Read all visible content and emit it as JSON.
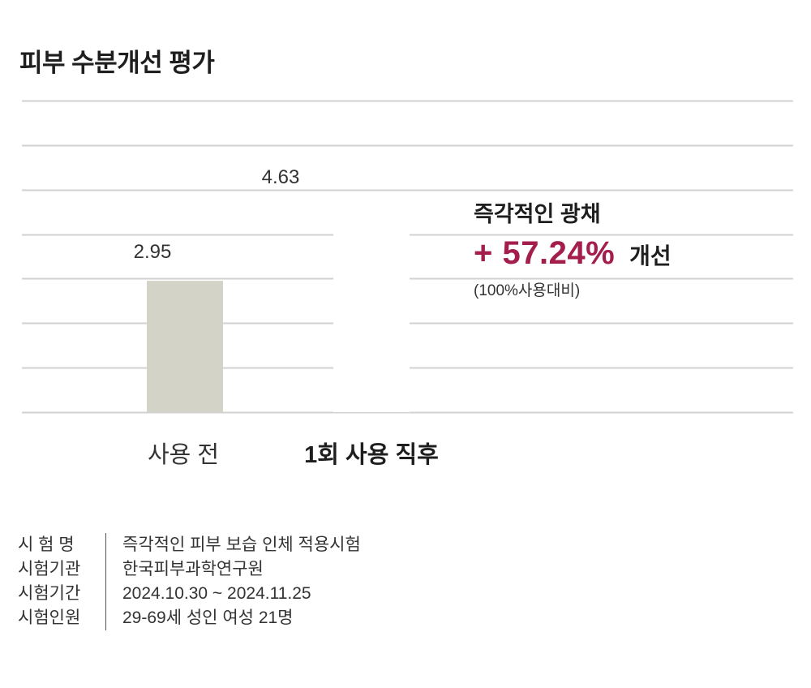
{
  "title": "피부 수분개선 평가",
  "chart_data": {
    "type": "bar",
    "categories": [
      "사용 전",
      "1회 사용 직후"
    ],
    "values": [
      2.95,
      4.63
    ],
    "value_labels": [
      "2.95",
      "4.63"
    ],
    "ylim": [
      0,
      7
    ],
    "grid": true,
    "colors": {
      "before": "#d3d3c8",
      "after": "#ffffff",
      "grid": "#d2d2d2",
      "accent": "#a31d4d"
    }
  },
  "annotation": {
    "heading": "즉각적인 광채",
    "percent": "+ 57.24%",
    "suffix": "개선",
    "note": "(100%사용대비)"
  },
  "test_info": [
    {
      "key": "시 험 명",
      "value": "즉각적인 피부 보습 인체 적용시험"
    },
    {
      "key": "시험기관",
      "value": "한국피부과학연구원"
    },
    {
      "key": "시험기간",
      "value": "2024.10.30 ~ 2024.11.25"
    },
    {
      "key": "시험인원",
      "value": "29-69세 성인 여성 21명"
    }
  ]
}
